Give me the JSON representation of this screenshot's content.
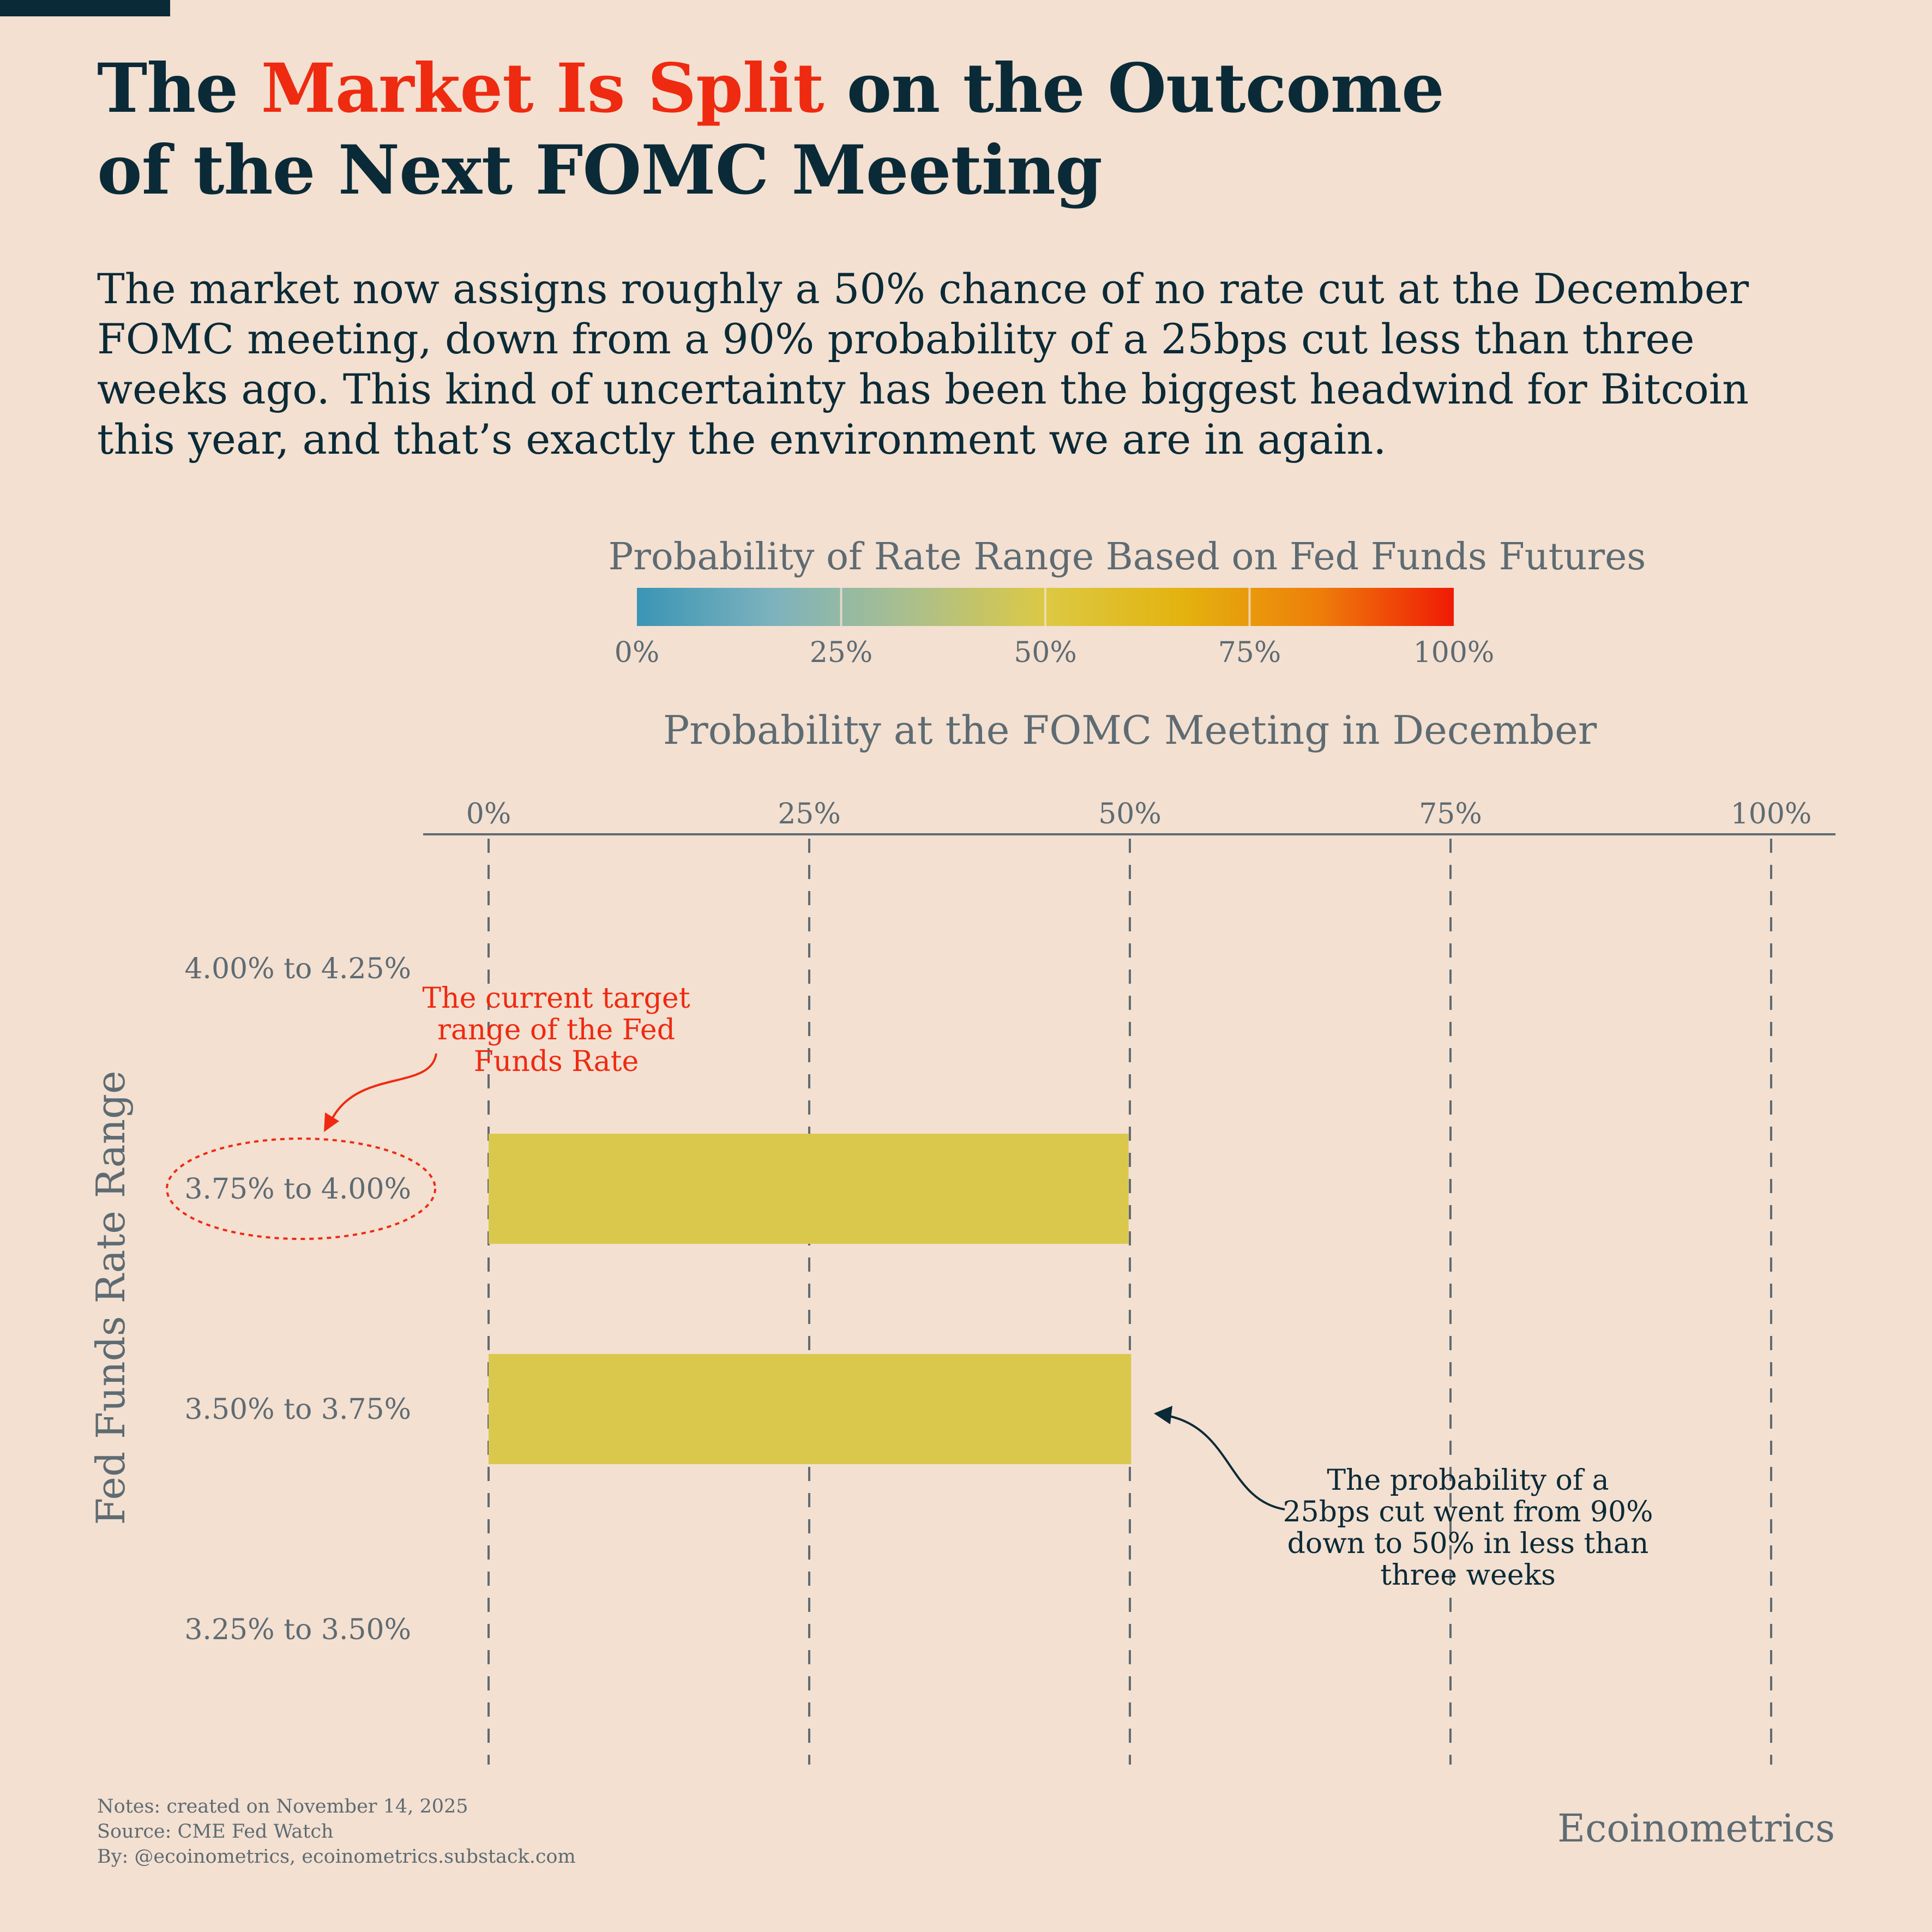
{
  "header": {
    "title_part1": "The ",
    "title_highlight": "Market Is Split",
    "title_part2": " on the Outcome",
    "title_line2": "of the Next FOMC Meeting",
    "subtitle": "The market now assigns roughly a 50% chance of no rate cut at the December FOMC meeting, down from a 90% probability of a 25bps cut less than three weeks ago. This kind of uncertainty has been the biggest headwind for Bitcoin this year, and that’s exactly the environment we are in again."
  },
  "colors": {
    "background": "#f3e0d1",
    "text_dark": "#0b2a37",
    "accent_red": "#ee2a10",
    "muted": "#5e6b72",
    "bar": "#dac84d",
    "scale": [
      "#3a95b5",
      "#7db2bd",
      "#aabf8d",
      "#dcc944",
      "#e3b30f",
      "#ee7f0a",
      "#f01a06"
    ]
  },
  "colorbar": {
    "title": "Probability of Rate Range Based on Fed Funds Futures",
    "ticks": [
      "0%",
      "25%",
      "50%",
      "75%",
      "100%"
    ]
  },
  "chart_data": {
    "type": "bar",
    "orientation": "horizontal",
    "title": "Probability at the FOMC Meeting in December",
    "ylabel": "Fed Funds Rate Range",
    "x_ticks": [
      "0%",
      "25%",
      "50%",
      "75%",
      "100%"
    ],
    "xlim": [
      0,
      100
    ],
    "grid": "dashed vertical",
    "categories": [
      "4.00% to 4.25%",
      "3.75% to 4.00%",
      "3.50% to 3.75%",
      "3.25% to 3.50%"
    ],
    "values": [
      0,
      49.9,
      50.1,
      0
    ],
    "annotations": [
      {
        "text": "The current target range of the Fed Funds Rate",
        "lines": [
          "The current target",
          "range of the Fed",
          "Funds Rate"
        ],
        "target": "3.75% to 4.00%"
      },
      {
        "text": "The probability of a 25bps cut went from 90% down to 50% in less than three weeks",
        "lines": [
          "The probability of a",
          "25bps cut went from 90%",
          "down to 50% in less than",
          "three weeks"
        ],
        "target": "3.50% to 3.75%"
      }
    ]
  },
  "footer": {
    "notes": "Notes: created on November 14, 2025",
    "source": "Source: CME Fed Watch",
    "by": "By: @ecoinometrics, ecoinometrics.substack.com",
    "brand": "Ecoinometrics"
  }
}
